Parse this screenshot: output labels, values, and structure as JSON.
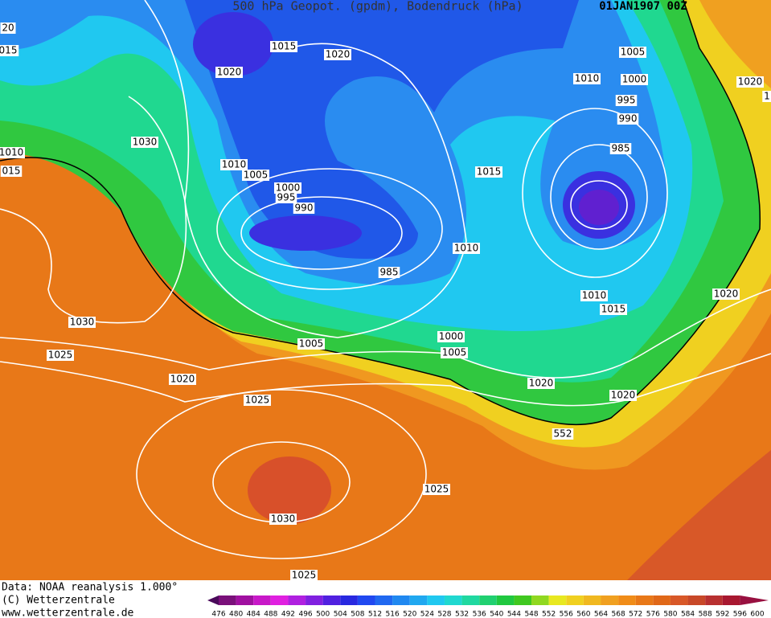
{
  "header": {
    "title": "500 hPa Geopot. (gpdm), Bodendruck (hPa)",
    "date": "01JAN1907 00Z"
  },
  "isobar_labels": [
    "20",
    "015",
    "1015",
    "1020",
    "1020",
    "1005",
    "1010",
    "1000",
    "995",
    "1020",
    "990",
    "1030",
    "985",
    "1010",
    "015",
    "1010",
    "1005",
    "1015",
    "1000",
    "995",
    "990",
    "1010",
    "985",
    "1010",
    "1015",
    "1020",
    "1030",
    "1000",
    "1005",
    "1005",
    "1025",
    "1020",
    "1020",
    "1020",
    "1025",
    "552",
    "1025",
    "1030",
    "1025",
    "1"
  ],
  "footer": [
    "Data: NOAA reanalysis 1.000°",
    "(C) Wetterzentrale",
    "www.wetterzentrale.de"
  ],
  "legend": {
    "labels": [
      "476",
      "480",
      "484",
      "488",
      "492",
      "496",
      "500",
      "504",
      "508",
      "512",
      "516",
      "520",
      "524",
      "528",
      "532",
      "536",
      "540",
      "544",
      "548",
      "552",
      "556",
      "560",
      "564",
      "568",
      "572",
      "576",
      "580",
      "584",
      "588",
      "592",
      "596",
      "600"
    ],
    "colors": [
      "#4a0a5a",
      "#7a107a",
      "#a010a0",
      "#c818c8",
      "#e020e0",
      "#b020e0",
      "#8020e0",
      "#5020e0",
      "#2828e0",
      "#2048f0",
      "#2068f0",
      "#2088f0",
      "#20a8f0",
      "#20c8f0",
      "#20d8d0",
      "#20d8a0",
      "#20d070",
      "#20c840",
      "#40c820",
      "#90d820",
      "#e8e820",
      "#f0d020",
      "#f0b820",
      "#f0a020",
      "#f08c18",
      "#e87818",
      "#e06818",
      "#d85828",
      "#c84828",
      "#b83030",
      "#a81830",
      "#981040"
    ]
  }
}
